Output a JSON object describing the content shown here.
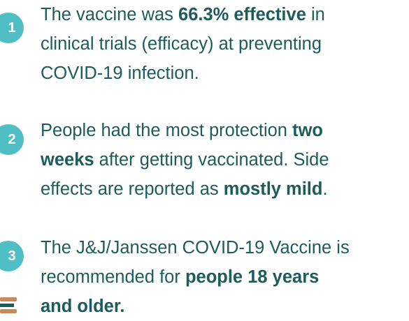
{
  "items": [
    {
      "number": "1",
      "lines": [
        [
          {
            "text": "The vaccine was ",
            "bold": false
          },
          {
            "text": "66.3% effective",
            "bold": true
          },
          {
            "text": " in",
            "bold": false
          }
        ],
        [
          {
            "text": "clinical trials (efficacy) at preventing",
            "bold": false
          }
        ],
        [
          {
            "text": "COVID-19 infection.",
            "bold": false
          }
        ]
      ]
    },
    {
      "number": "2",
      "lines": [
        [
          {
            "text": "People had the most protection ",
            "bold": false
          },
          {
            "text": "two",
            "bold": true
          }
        ],
        [
          {
            "text": "weeks",
            "bold": true
          },
          {
            "text": " after getting vaccinated. Side",
            "bold": false
          }
        ],
        [
          {
            "text": "effects are reported as ",
            "bold": false
          },
          {
            "text": "mostly mild",
            "bold": true
          },
          {
            "text": ".",
            "bold": false
          }
        ]
      ]
    },
    {
      "number": "3",
      "lines": [
        [
          {
            "text": "The J&J/Janssen COVID-19 Vaccine is",
            "bold": false
          }
        ],
        [
          {
            "text": "recommended for ",
            "bold": false
          },
          {
            "text": "people 18 years",
            "bold": true
          }
        ],
        [
          {
            "text": "and older.",
            "bold": true
          }
        ]
      ]
    }
  ]
}
